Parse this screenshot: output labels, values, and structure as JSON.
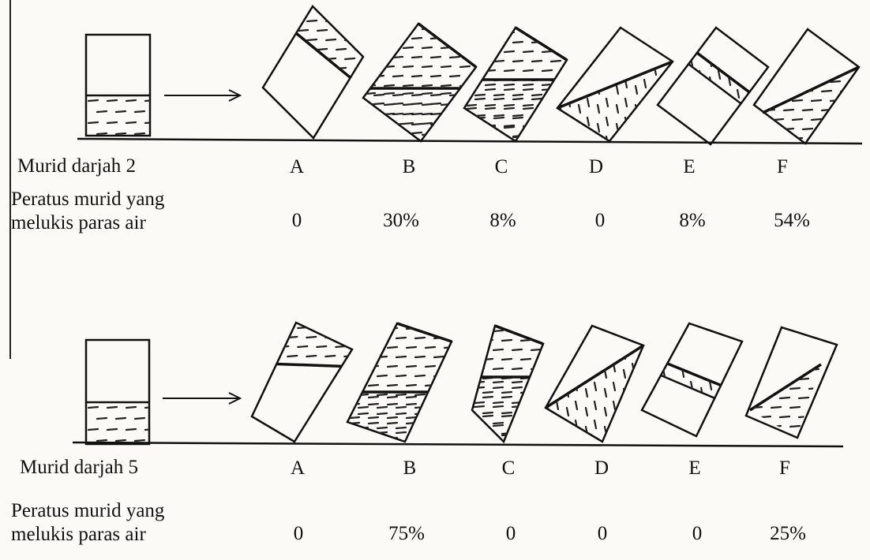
{
  "panels": [
    {
      "grade_label": "Murid darjah 2",
      "percent_label_line1": "Peratus murid yang",
      "percent_label_line2": "melukis paras air",
      "options": [
        {
          "letter": "A",
          "percent": "0"
        },
        {
          "letter": "B",
          "percent": "30%"
        },
        {
          "letter": "C",
          "percent": "8%"
        },
        {
          "letter": "D",
          "percent": "0"
        },
        {
          "letter": "E",
          "percent": "8%"
        },
        {
          "letter": "F",
          "percent": "54%"
        }
      ]
    },
    {
      "grade_label": "Murid darjah 5",
      "percent_label_line1": "Peratus murid yang",
      "percent_label_line2": "melukis paras air",
      "options": [
        {
          "letter": "A",
          "percent": "0"
        },
        {
          "letter": "B",
          "percent": "75%"
        },
        {
          "letter": "C",
          "percent": "0"
        },
        {
          "letter": "D",
          "percent": "0"
        },
        {
          "letter": "E",
          "percent": "0"
        },
        {
          "letter": "F",
          "percent": "25%"
        }
      ]
    }
  ]
}
